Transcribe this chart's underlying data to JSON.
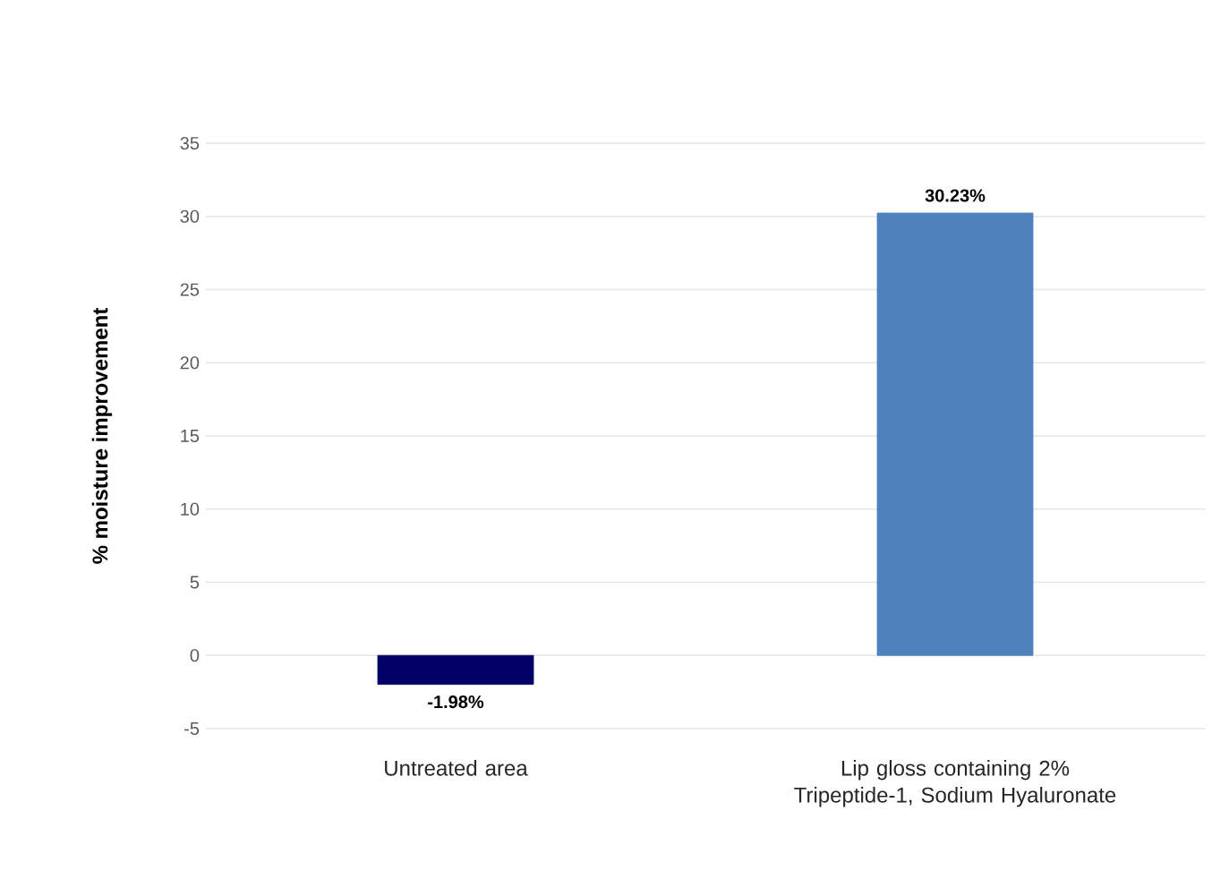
{
  "chart_data": {
    "type": "bar",
    "ylabel": "% moisture improvement",
    "categories": [
      "Untreated area",
      "Lip gloss containing 2% Tripeptide-1, Sodium Hyaluronate"
    ],
    "values": [
      -1.98,
      30.23
    ],
    "colors": [
      "#000066",
      "#4f81bd"
    ],
    "value_labels": [
      "-1.98%",
      "30.23%"
    ],
    "ylim": [
      -5,
      35
    ],
    "yticks": [
      -5,
      0,
      5,
      10,
      15,
      20,
      25,
      30,
      35
    ],
    "grid": "y"
  }
}
